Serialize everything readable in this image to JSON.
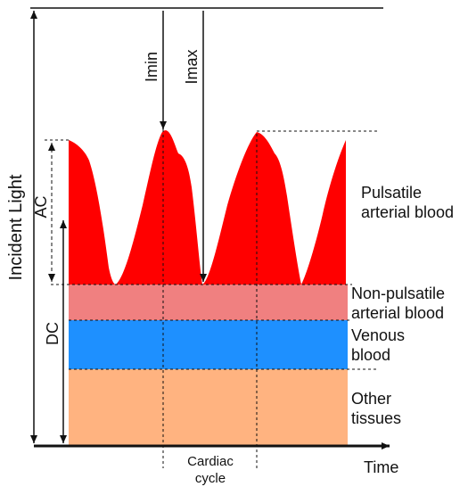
{
  "colors": {
    "pulsatile": "#ff0000",
    "non_pulsatile": "#f08080",
    "venous": "#1e90ff",
    "other_tissues": "#ffb380",
    "ink": "#111111",
    "background": "#ffffff"
  },
  "labels": {
    "incident_light": "Incident Light",
    "ac": "AC",
    "dc": "DC",
    "imin": "Imin",
    "imax": "Imax",
    "time": "Time",
    "cardiac_cycle_line1": "Cardiac",
    "cardiac_cycle_line2": "cycle",
    "pulsatile_line1": "Pulsatile",
    "pulsatile_line2": "arterial blood",
    "non_pulsatile_line1": "Non-pulsatile",
    "non_pulsatile_line2": "arterial blood",
    "venous_line1": "Venous",
    "venous_line2": "blood",
    "other_line1": "Other",
    "other_line2": "tissues"
  }
}
